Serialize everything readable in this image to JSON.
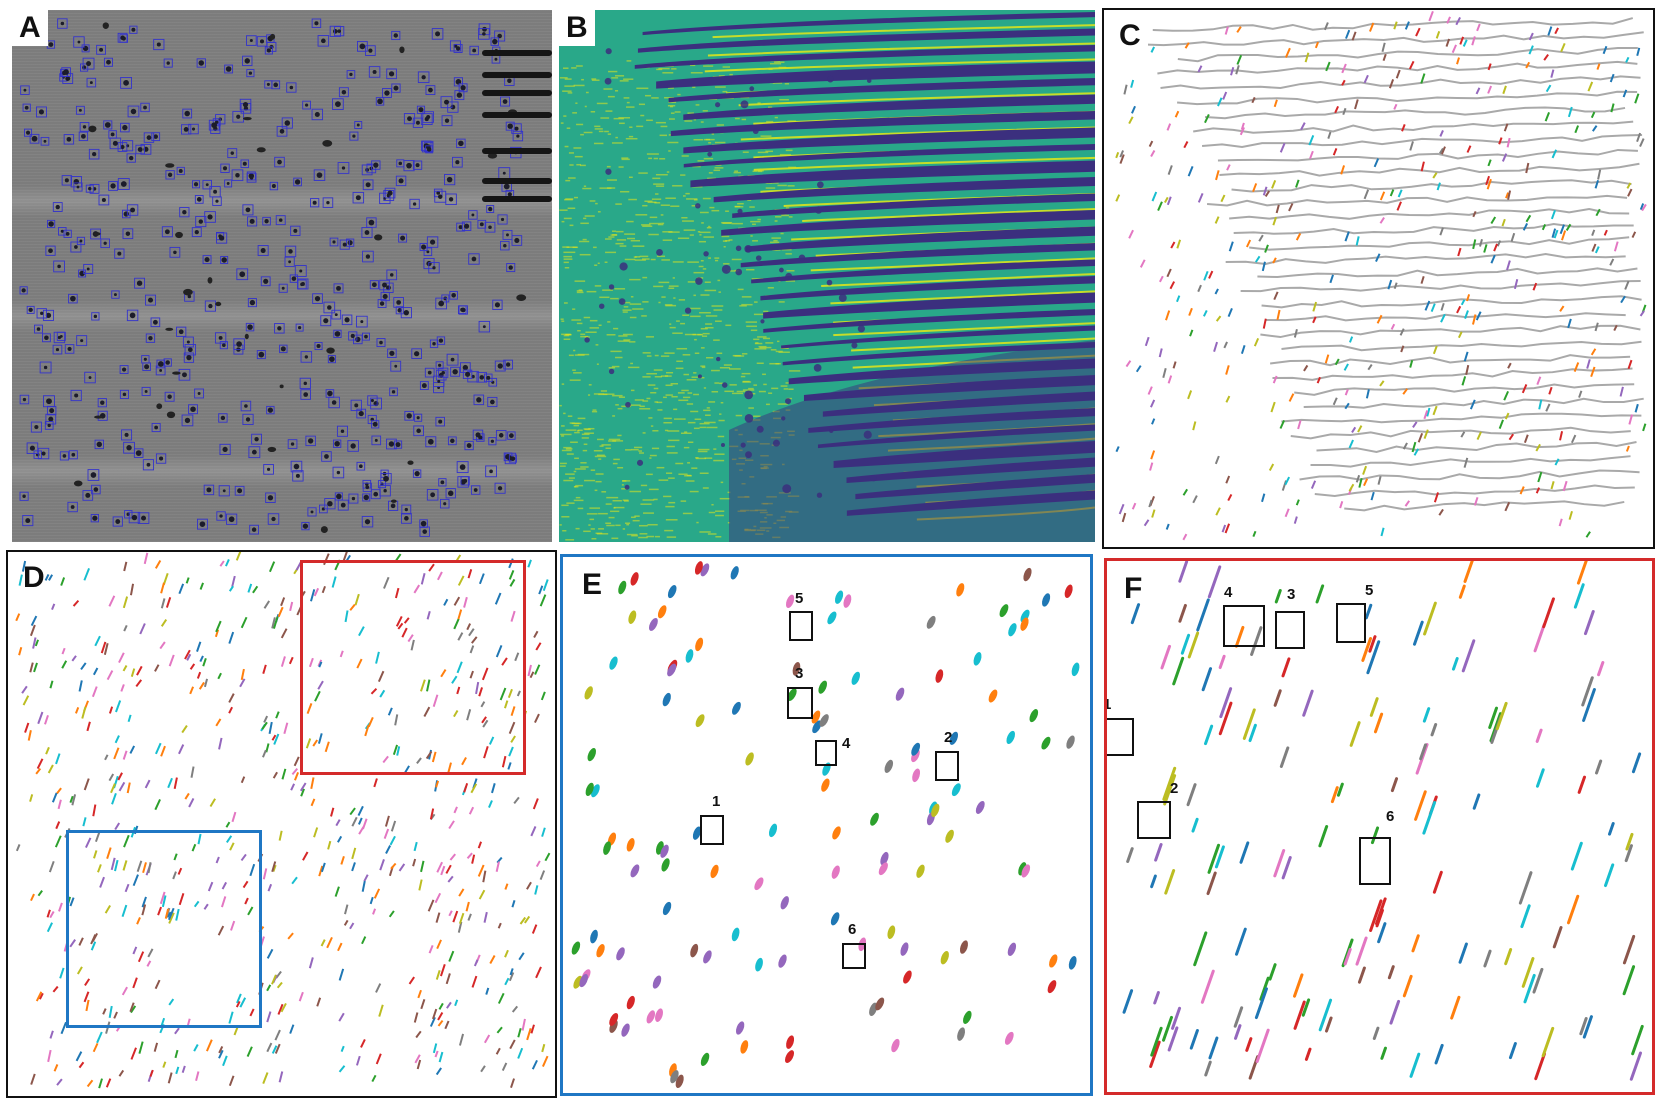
{
  "figure": {
    "panels": [
      {
        "letter": "A"
      },
      {
        "letter": "B"
      },
      {
        "letter": "C"
      },
      {
        "letter": "D"
      },
      {
        "letter": "E"
      },
      {
        "letter": "F"
      }
    ],
    "panel_e": {
      "box_numbers": [
        "5",
        "3",
        "4",
        "2",
        "1",
        "6"
      ]
    },
    "panel_f": {
      "box_numbers": [
        "4",
        "3",
        "5",
        "1",
        "2",
        "6"
      ]
    }
  },
  "colors": {
    "detection_box": "#3333cc",
    "zoom_blue": "#1f77c4",
    "zoom_red": "#d42a2a",
    "contour_gray": "#a9a9a9",
    "viridis_dark": "#3b2f7e",
    "viridis_mid": "#29a889",
    "viridis_bright": "#e3e619",
    "track_palette": [
      "#1f77b4",
      "#ff7f0e",
      "#2ca02c",
      "#d62728",
      "#9467bd",
      "#8c564b",
      "#e377c2",
      "#7f7f7f",
      "#bcbd22",
      "#17becf"
    ]
  }
}
